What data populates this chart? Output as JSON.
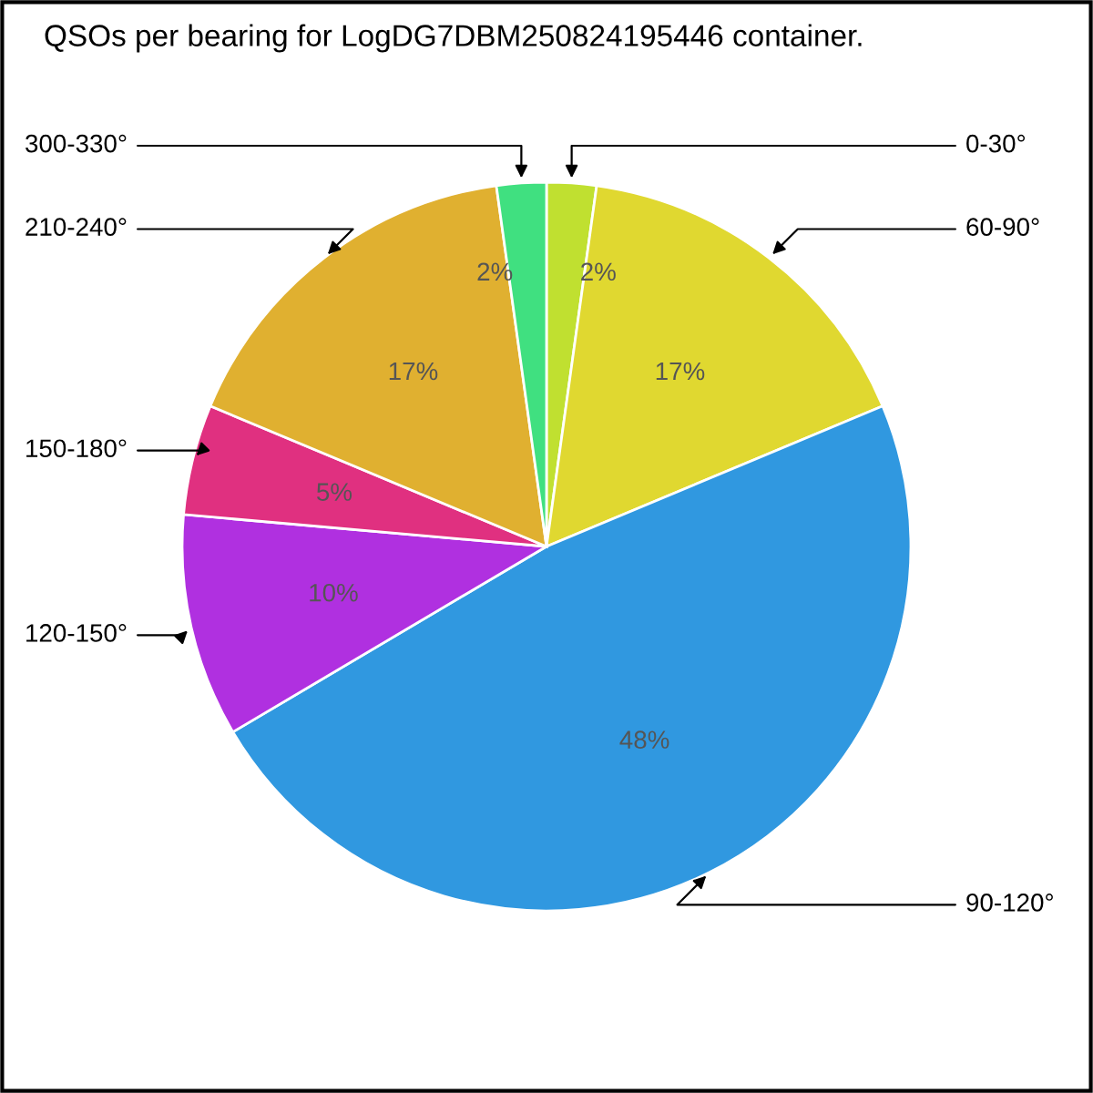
{
  "chart_data": {
    "type": "pie",
    "title": "QSOs per bearing for LogDG7DBM250824195446 container.",
    "categories": [
      "0-30°",
      "60-90°",
      "90-120°",
      "120-150°",
      "150-180°",
      "210-240°",
      "300-330°"
    ],
    "values": [
      2.2,
      16.5,
      47.8,
      9.9,
      4.9,
      16.5,
      2.2
    ],
    "value_labels": [
      "2%",
      "17%",
      "48%",
      "10%",
      "5%",
      "17%",
      "2%"
    ],
    "colors": [
      "#c0e030",
      "#e0d830",
      "#3098e0",
      "#b030e0",
      "#e03080",
      "#e0b030",
      "#40e080"
    ],
    "legend": false
  }
}
